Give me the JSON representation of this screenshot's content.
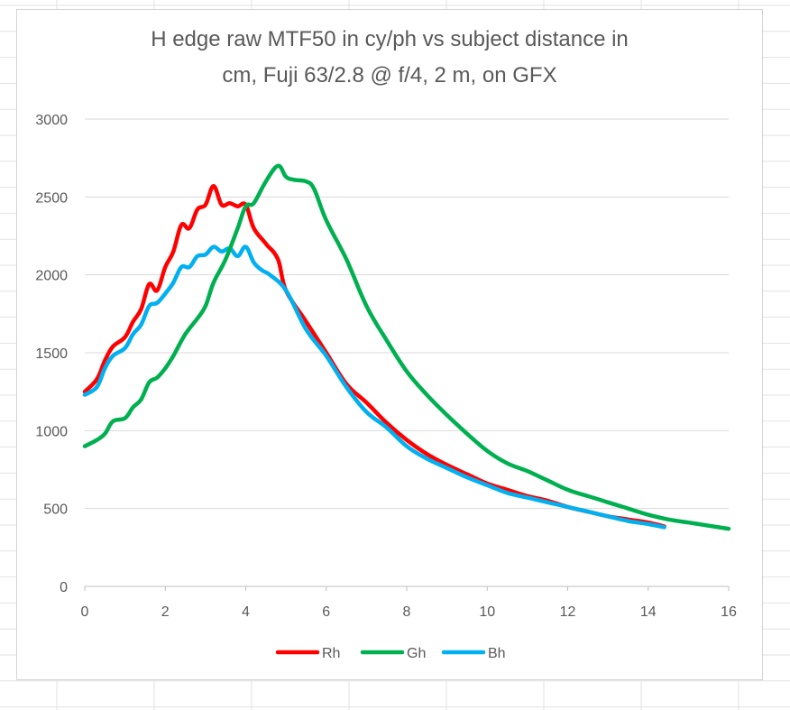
{
  "chart_data": {
    "type": "line",
    "title": "H edge raw MTF50 in cy/ph vs subject distance in cm, Fuji 63/2.8 @ f/4, 2 m, on GFX",
    "title_lines": [
      "H edge raw MTF50 in cy/ph vs subject distance in",
      "cm, Fuji 63/2.8 @ f/4, 2 m, on GFX"
    ],
    "xlabel": "",
    "ylabel": "",
    "xlim": [
      0,
      16
    ],
    "ylim": [
      0,
      3000
    ],
    "x_ticks": [
      0,
      2,
      4,
      6,
      8,
      10,
      12,
      14,
      16
    ],
    "y_ticks": [
      0,
      500,
      1000,
      1500,
      2000,
      2500,
      3000
    ],
    "grid": "horizontal",
    "legend_position": "bottom",
    "series": [
      {
        "name": "Rh",
        "color": "#ff0000",
        "x": [
          0,
          0.3,
          0.5,
          0.7,
          1.0,
          1.2,
          1.4,
          1.6,
          1.8,
          2.0,
          2.2,
          2.4,
          2.6,
          2.8,
          3.0,
          3.2,
          3.4,
          3.6,
          3.8,
          4.0,
          4.2,
          4.5,
          4.8,
          5.0,
          5.5,
          6.0,
          6.5,
          7.0,
          7.5,
          8.0,
          8.5,
          9.0,
          9.5,
          10.0,
          10.5,
          11.0,
          11.5,
          12.0,
          12.5,
          13.0,
          13.5,
          14.0,
          14.4
        ],
        "values": [
          1250,
          1330,
          1450,
          1540,
          1600,
          1700,
          1780,
          1940,
          1900,
          2050,
          2150,
          2320,
          2300,
          2420,
          2450,
          2570,
          2450,
          2460,
          2440,
          2450,
          2300,
          2200,
          2100,
          1900,
          1700,
          1500,
          1300,
          1180,
          1050,
          940,
          850,
          780,
          720,
          660,
          620,
          580,
          550,
          510,
          480,
          450,
          430,
          410,
          385
        ]
      },
      {
        "name": "Gh",
        "color": "#00b050",
        "x": [
          0,
          0.3,
          0.5,
          0.7,
          1.0,
          1.2,
          1.4,
          1.6,
          1.8,
          2.0,
          2.2,
          2.5,
          2.8,
          3.0,
          3.2,
          3.5,
          3.8,
          4.0,
          4.2,
          4.5,
          4.8,
          5.0,
          5.2,
          5.5,
          5.7,
          6.0,
          6.5,
          7.0,
          7.5,
          8.0,
          8.5,
          9.0,
          9.5,
          10.0,
          10.5,
          11.0,
          11.5,
          12.0,
          12.5,
          13.0,
          13.5,
          14.0,
          14.5,
          15.0,
          15.5,
          16.0
        ],
        "values": [
          900,
          940,
          980,
          1060,
          1080,
          1150,
          1200,
          1310,
          1340,
          1400,
          1480,
          1620,
          1720,
          1800,
          1950,
          2100,
          2300,
          2440,
          2460,
          2600,
          2700,
          2630,
          2610,
          2600,
          2550,
          2350,
          2100,
          1800,
          1580,
          1380,
          1230,
          1100,
          980,
          870,
          790,
          740,
          680,
          620,
          580,
          540,
          500,
          460,
          430,
          410,
          390,
          370
        ]
      },
      {
        "name": "Bh",
        "color": "#00b0f0",
        "x": [
          0,
          0.3,
          0.5,
          0.7,
          1.0,
          1.2,
          1.4,
          1.6,
          1.8,
          2.0,
          2.2,
          2.4,
          2.6,
          2.8,
          3.0,
          3.2,
          3.4,
          3.6,
          3.8,
          4.0,
          4.2,
          4.4,
          4.6,
          5.0,
          5.5,
          6.0,
          6.5,
          7.0,
          7.5,
          8.0,
          8.5,
          9.0,
          9.5,
          10.0,
          10.5,
          11.0,
          11.5,
          12.0,
          12.5,
          13.0,
          13.5,
          14.0,
          14.4
        ],
        "values": [
          1230,
          1280,
          1400,
          1480,
          1530,
          1620,
          1680,
          1800,
          1820,
          1880,
          1950,
          2050,
          2050,
          2120,
          2130,
          2180,
          2150,
          2170,
          2120,
          2180,
          2080,
          2030,
          2000,
          1900,
          1650,
          1480,
          1280,
          1120,
          1020,
          900,
          820,
          760,
          700,
          650,
          600,
          570,
          540,
          510,
          480,
          450,
          420,
          400,
          380
        ]
      }
    ]
  }
}
